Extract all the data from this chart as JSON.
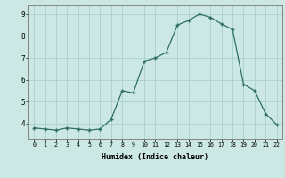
{
  "x": [
    0,
    1,
    2,
    3,
    4,
    5,
    6,
    7,
    8,
    9,
    10,
    11,
    12,
    13,
    14,
    15,
    16,
    17,
    18,
    19,
    20,
    21,
    22
  ],
  "y": [
    3.8,
    3.75,
    3.7,
    3.8,
    3.75,
    3.7,
    3.75,
    4.2,
    5.5,
    5.4,
    6.85,
    7.0,
    7.25,
    8.5,
    8.7,
    9.0,
    8.85,
    8.55,
    8.3,
    5.8,
    5.5,
    4.45,
    3.95
  ],
  "line_color": "#2e6e65",
  "bg_color": "#cce8e4",
  "grid_color": "#aacfcb",
  "xlabel": "Humidex (Indice chaleur)",
  "ylim": [
    3.3,
    9.4
  ],
  "xlim": [
    -0.5,
    22.5
  ],
  "yticks": [
    4,
    5,
    6,
    7,
    8,
    9
  ],
  "xticks": [
    0,
    1,
    2,
    3,
    4,
    5,
    6,
    7,
    8,
    9,
    10,
    11,
    12,
    13,
    14,
    15,
    16,
    17,
    18,
    19,
    20,
    21,
    22
  ],
  "xtick_labels": [
    "0",
    "1",
    "2",
    "3",
    "4",
    "5",
    "6",
    "7",
    "8",
    "9",
    "10",
    "11",
    "12",
    "13",
    "14",
    "15",
    "16",
    "17",
    "18",
    "19",
    "20",
    "21",
    "22"
  ],
  "marker": "+"
}
